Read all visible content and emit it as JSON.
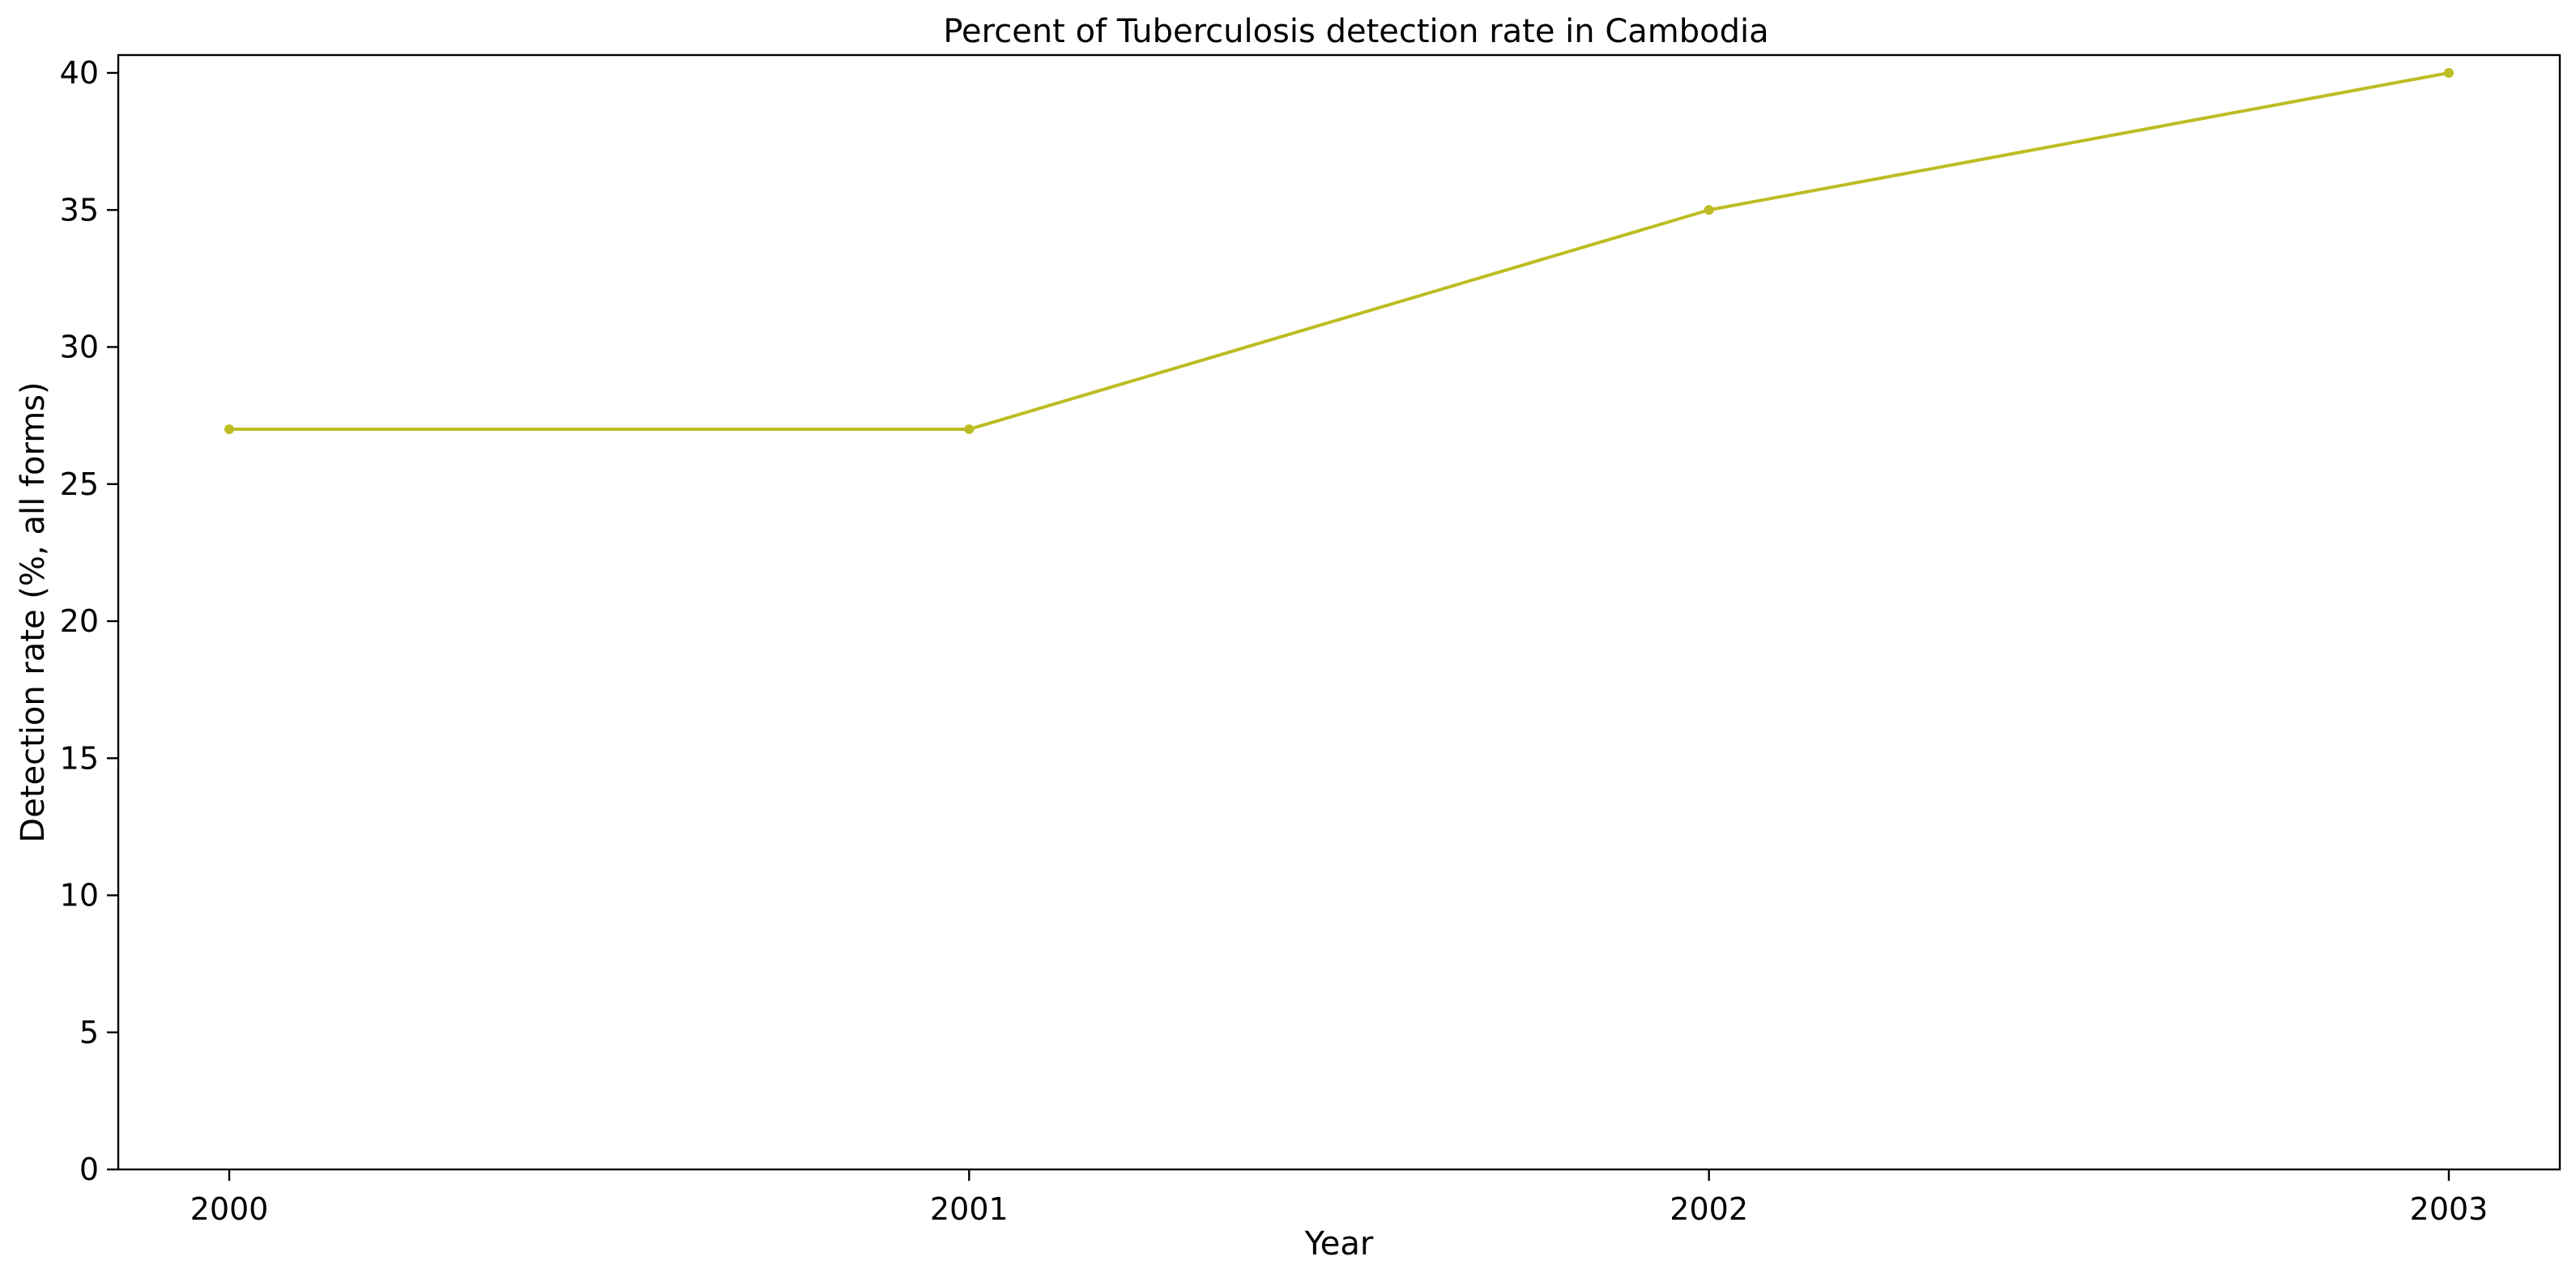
{
  "chart_data": {
    "type": "line",
    "title": "Percent of Tuberculosis detection rate in Cambodia",
    "xlabel": "Year",
    "ylabel": "Detection rate (%, all forms)",
    "x": [
      "2000",
      "2001",
      "2002",
      "2003"
    ],
    "series": [
      {
        "values": [
          27,
          27,
          35,
          40
        ],
        "color": "#bcbd22"
      }
    ],
    "xlim": [
      2000,
      2003
    ],
    "ylim": [
      0,
      40
    ],
    "yticks": [
      0,
      5,
      10,
      15,
      20,
      25,
      30,
      35,
      40
    ],
    "grid": false,
    "legend": "none"
  }
}
